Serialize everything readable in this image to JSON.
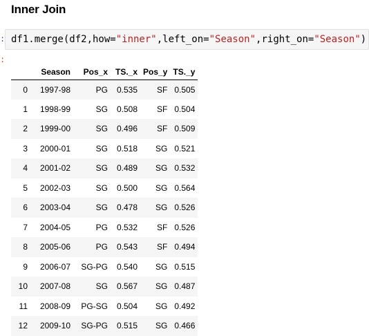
{
  "heading": "Inner Join",
  "prompts": {
    "in": ":",
    "out": ":"
  },
  "code": {
    "parts": [
      {
        "t": "df1.merge(df2,how=",
        "c": "kw"
      },
      {
        "t": "\"inner\"",
        "c": "str"
      },
      {
        "t": ",left_on=",
        "c": "kw"
      },
      {
        "t": "\"Season\"",
        "c": "str"
      },
      {
        "t": ",right_on=",
        "c": "kw"
      },
      {
        "t": "\"Season\"",
        "c": "str"
      },
      {
        "t": ")",
        "c": "kw"
      }
    ]
  },
  "table": {
    "columns": [
      "",
      "Season",
      "Pos_x",
      "TS._x",
      "Pos_y",
      "TS._y"
    ],
    "rows": [
      [
        "0",
        "1997-98",
        "PG",
        "0.535",
        "SF",
        "0.505"
      ],
      [
        "1",
        "1998-99",
        "SG",
        "0.508",
        "SF",
        "0.504"
      ],
      [
        "2",
        "1999-00",
        "SG",
        "0.496",
        "SF",
        "0.509"
      ],
      [
        "3",
        "2000-01",
        "SG",
        "0.518",
        "SG",
        "0.521"
      ],
      [
        "4",
        "2001-02",
        "SG",
        "0.489",
        "SG",
        "0.532"
      ],
      [
        "5",
        "2002-03",
        "SG",
        "0.500",
        "SG",
        "0.564"
      ],
      [
        "6",
        "2003-04",
        "SG",
        "0.478",
        "SG",
        "0.526"
      ],
      [
        "7",
        "2004-05",
        "PG",
        "0.532",
        "SF",
        "0.526"
      ],
      [
        "8",
        "2005-06",
        "PG",
        "0.543",
        "SF",
        "0.494"
      ],
      [
        "9",
        "2006-07",
        "SG-PG",
        "0.540",
        "SG",
        "0.515"
      ],
      [
        "10",
        "2007-08",
        "SG",
        "0.567",
        "SG",
        "0.487"
      ],
      [
        "11",
        "2008-09",
        "PG-SG",
        "0.504",
        "SG",
        "0.492"
      ],
      [
        "12",
        "2009-10",
        "SG-PG",
        "0.515",
        "SG",
        "0.466"
      ]
    ]
  }
}
